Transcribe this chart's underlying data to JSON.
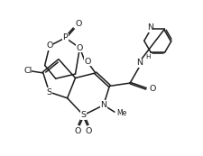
{
  "bg": "#ffffff",
  "lc": "#1c1c1c",
  "lw": 1.1,
  "fs": 6.8,
  "fw": 2.25,
  "fh": 1.73,
  "dpi": 100,
  "xlim": [
    0,
    10
  ],
  "ylim": [
    0,
    7.7
  ]
}
